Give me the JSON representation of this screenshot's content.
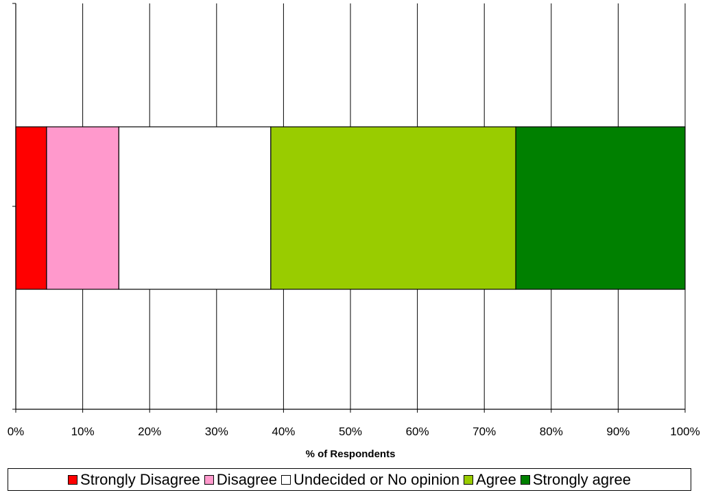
{
  "chart_data": {
    "type": "bar",
    "orientation": "horizontal",
    "stacked": "percent",
    "categories": [
      ""
    ],
    "series": [
      {
        "name": "Strongly Disagree",
        "values": [
          4.6
        ],
        "color": "#FF0000"
      },
      {
        "name": "Disagree",
        "values": [
          10.8
        ],
        "color": "#FF99CC"
      },
      {
        "name": "Undecided or No opinion",
        "values": [
          22.7
        ],
        "color": "#FFFFFF"
      },
      {
        "name": "Agree",
        "values": [
          36.6
        ],
        "color": "#99CC00"
      },
      {
        "name": "Strongly agree",
        "values": [
          25.3
        ],
        "color": "#008000"
      }
    ],
    "xlabel": "% of Respondents",
    "xlim": [
      0,
      100
    ],
    "xticks": [
      "0%",
      "10%",
      "20%",
      "30%",
      "40%",
      "50%",
      "60%",
      "70%",
      "80%",
      "90%",
      "100%"
    ],
    "grid": true,
    "legend_position": "bottom"
  }
}
